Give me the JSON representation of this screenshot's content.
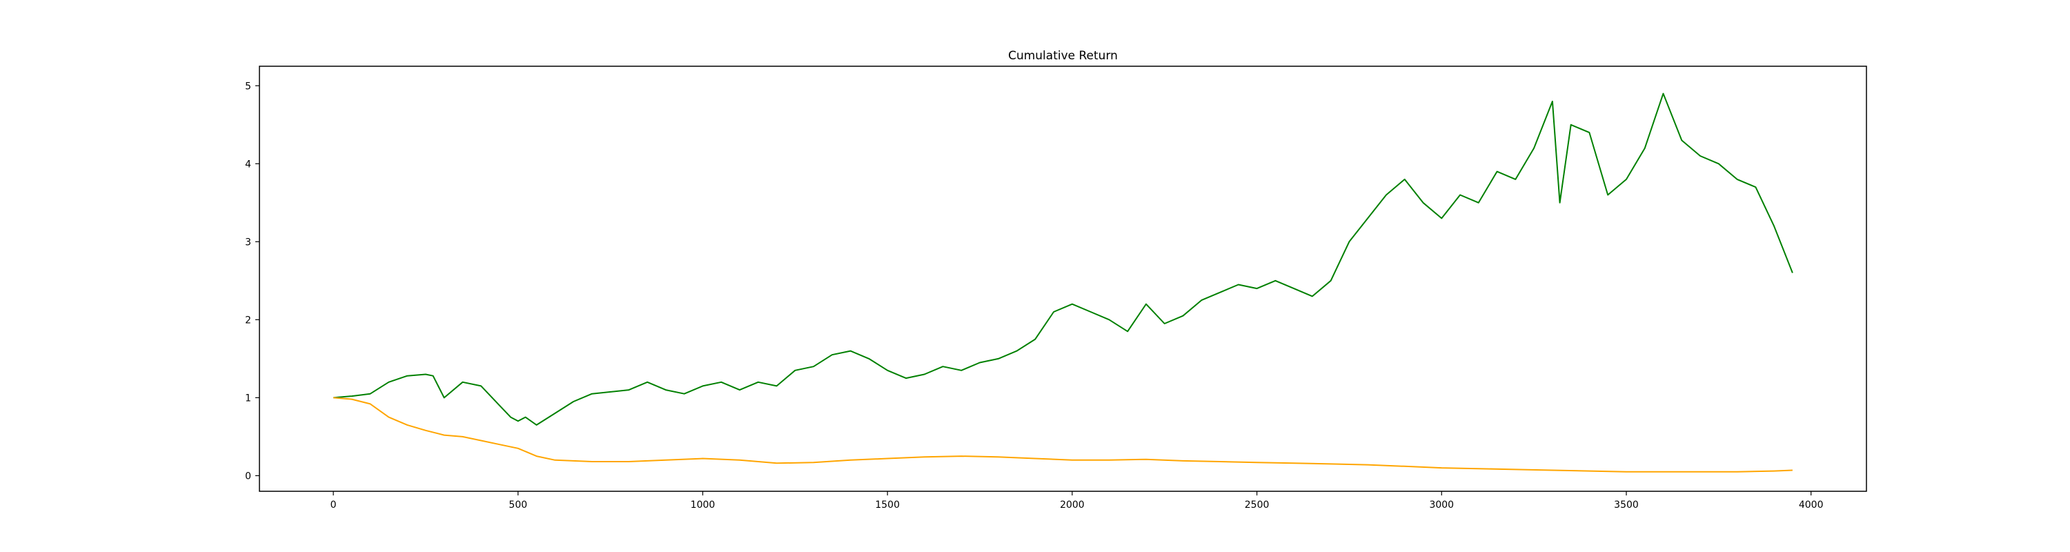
{
  "chart_data": {
    "type": "line",
    "title": "Cumulative Return",
    "xlabel": "",
    "ylabel": "",
    "xlim": [
      -200,
      4150
    ],
    "ylim": [
      -0.2,
      5.25
    ],
    "xticks": [
      0,
      500,
      1000,
      1500,
      2000,
      2500,
      3000,
      3500,
      4000
    ],
    "yticks": [
      0,
      1,
      2,
      3,
      4,
      5
    ],
    "grid": false,
    "legend": "none",
    "series": [
      {
        "name": "green",
        "color": "#008000",
        "x": [
          0,
          50,
          100,
          150,
          200,
          250,
          270,
          300,
          350,
          400,
          420,
          450,
          480,
          500,
          520,
          550,
          600,
          650,
          700,
          800,
          850,
          900,
          950,
          1000,
          1050,
          1100,
          1150,
          1200,
          1250,
          1300,
          1350,
          1400,
          1450,
          1500,
          1550,
          1600,
          1650,
          1700,
          1750,
          1800,
          1850,
          1900,
          1950,
          2000,
          2050,
          2100,
          2150,
          2200,
          2250,
          2300,
          2350,
          2400,
          2450,
          2500,
          2550,
          2600,
          2650,
          2700,
          2750,
          2800,
          2850,
          2900,
          2950,
          3000,
          3050,
          3100,
          3150,
          3200,
          3250,
          3300,
          3320,
          3350,
          3400,
          3450,
          3500,
          3550,
          3600,
          3650,
          3700,
          3750,
          3800,
          3850,
          3900,
          3950
        ],
        "values": [
          1.0,
          1.02,
          1.05,
          1.2,
          1.28,
          1.3,
          1.28,
          1.0,
          1.2,
          1.15,
          1.05,
          0.9,
          0.75,
          0.7,
          0.75,
          0.65,
          0.8,
          0.95,
          1.05,
          1.1,
          1.2,
          1.1,
          1.05,
          1.15,
          1.2,
          1.1,
          1.2,
          1.15,
          1.35,
          1.4,
          1.55,
          1.6,
          1.5,
          1.35,
          1.25,
          1.3,
          1.4,
          1.35,
          1.45,
          1.5,
          1.6,
          1.75,
          2.1,
          2.2,
          2.1,
          2.0,
          1.85,
          2.2,
          1.95,
          2.05,
          2.25,
          2.35,
          2.45,
          2.4,
          2.5,
          2.4,
          2.3,
          2.5,
          3.0,
          3.3,
          3.6,
          3.8,
          3.5,
          3.3,
          3.6,
          3.5,
          3.9,
          3.8,
          4.2,
          4.8,
          3.5,
          4.5,
          4.4,
          3.6,
          3.8,
          4.2,
          4.9,
          4.3,
          4.1,
          4.0,
          3.8,
          3.7,
          3.2,
          2.6
        ]
      },
      {
        "name": "orange",
        "color": "#FFA500",
        "x": [
          0,
          50,
          100,
          150,
          200,
          250,
          300,
          350,
          400,
          450,
          500,
          550,
          600,
          700,
          800,
          900,
          1000,
          1100,
          1200,
          1300,
          1400,
          1500,
          1600,
          1700,
          1800,
          1900,
          2000,
          2100,
          2200,
          2300,
          2400,
          2500,
          2600,
          2700,
          2800,
          2900,
          3000,
          3100,
          3200,
          3300,
          3400,
          3500,
          3600,
          3700,
          3800,
          3900,
          3950
        ],
        "values": [
          1.0,
          0.98,
          0.92,
          0.75,
          0.65,
          0.58,
          0.52,
          0.5,
          0.45,
          0.4,
          0.35,
          0.25,
          0.2,
          0.18,
          0.18,
          0.2,
          0.22,
          0.2,
          0.16,
          0.17,
          0.2,
          0.22,
          0.24,
          0.25,
          0.24,
          0.22,
          0.2,
          0.2,
          0.21,
          0.19,
          0.18,
          0.17,
          0.16,
          0.15,
          0.14,
          0.12,
          0.1,
          0.09,
          0.08,
          0.07,
          0.06,
          0.05,
          0.05,
          0.05,
          0.05,
          0.06,
          0.07
        ]
      }
    ]
  }
}
